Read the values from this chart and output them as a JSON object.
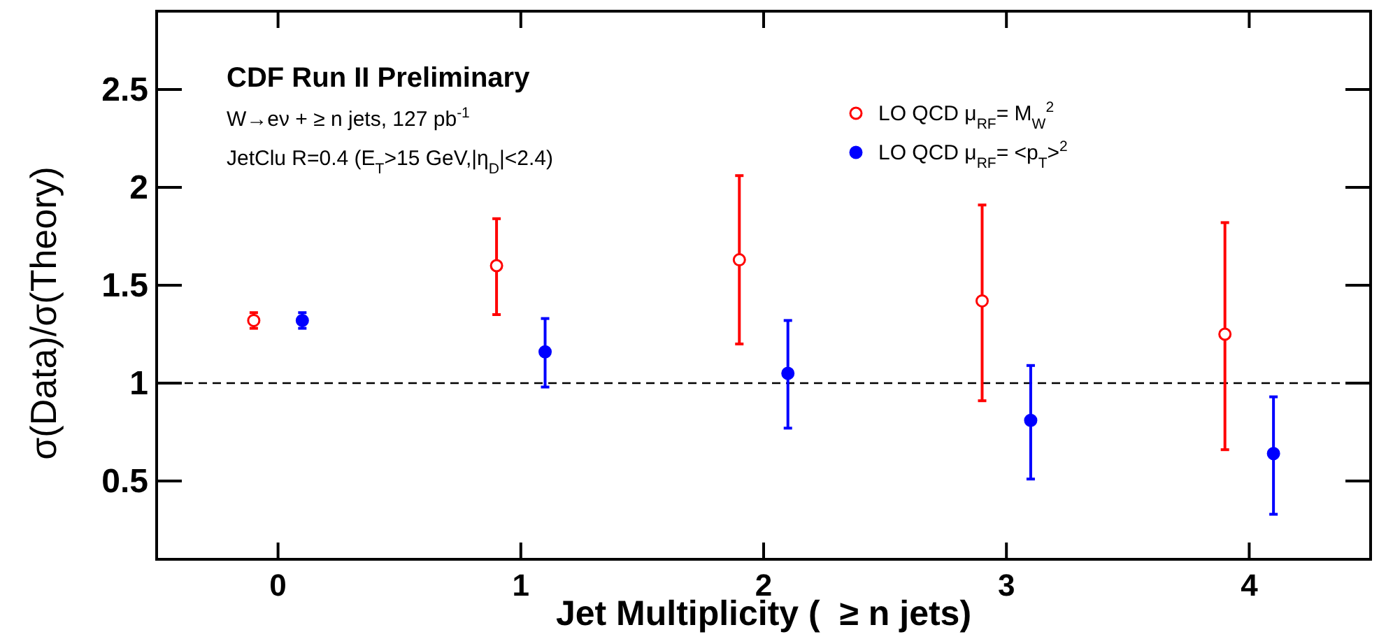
{
  "chart_data": {
    "type": "scatter",
    "title": "CDF Run II Preliminary",
    "annotations": [
      "W→eν + ≥ n jets, 127 pb$^{-1}$",
      "JetClu R=0.4 (E$_{T}$>15 GeV,|η$_{D}$|<2.4)"
    ],
    "xlabel": "Jet Multiplicity (  ≥ n jets)",
    "ylabel": "σ(Data)/σ(Theory)",
    "xlim": [
      -0.5,
      4.5
    ],
    "ylim": [
      0.1,
      2.9
    ],
    "xticks": [
      0,
      1,
      2,
      3,
      4
    ],
    "yticks": [
      0.5,
      1,
      1.5,
      2,
      2.5
    ],
    "grid": false,
    "legend": "top right",
    "marker": "circle",
    "series": [
      {
        "name": "LO QCD μ$_{RF}$= M$_{W}$$^{2}$",
        "color": "#ff0000",
        "x": [
          -0.1,
          0.9,
          1.9,
          2.9,
          3.9
        ],
        "values": [
          1.32,
          1.6,
          1.63,
          1.42,
          1.25
        ],
        "errors": [
          0.04,
          [
            1.35,
            1.84
          ],
          [
            1.2,
            2.06
          ],
          [
            0.91,
            1.91
          ],
          [
            0.66,
            1.82
          ]
        ]
      },
      {
        "name": "LO QCD μ$_{RF}$= <p$_{T}$>$^{2}$",
        "color": "#0000ff",
        "x": [
          0.1,
          1.1,
          2.1,
          3.1,
          4.1
        ],
        "values": [
          1.32,
          1.16,
          1.05,
          0.81,
          0.64
        ],
        "errors": [
          0.04,
          [
            0.98,
            1.33
          ],
          [
            0.77,
            1.32
          ],
          [
            0.51,
            1.09
          ],
          [
            0.33,
            0.93
          ]
        ]
      }
    ],
    "ref_lines": [
      {
        "axis": "y",
        "value": 1,
        "color": "#000000",
        "line_style": "dashed"
      }
    ]
  }
}
